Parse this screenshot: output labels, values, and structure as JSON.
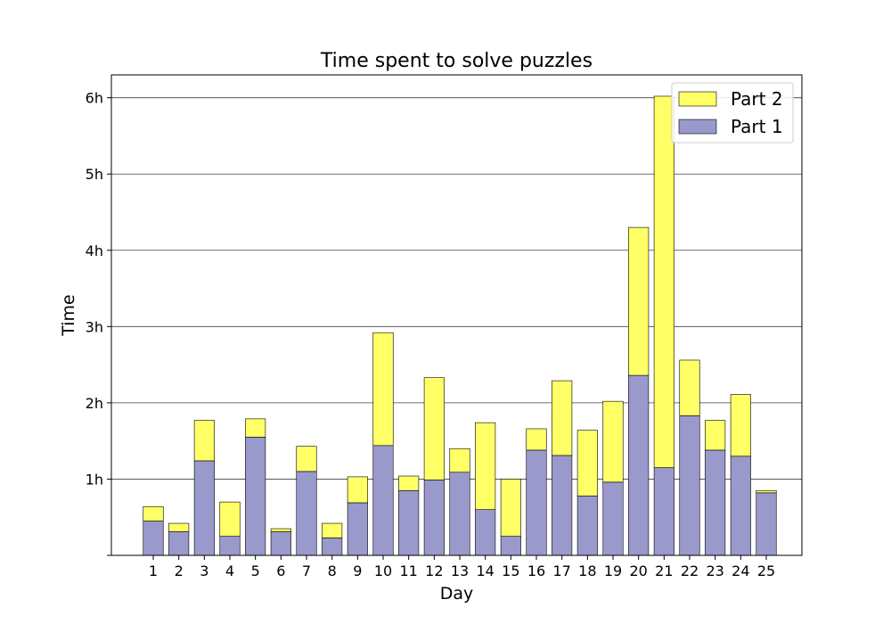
{
  "chart_data": {
    "type": "bar",
    "stacked": true,
    "title": "Time spent to solve puzzles",
    "xlabel": "Day",
    "ylabel": "Time",
    "categories": [
      "1",
      "2",
      "3",
      "4",
      "5",
      "6",
      "7",
      "8",
      "9",
      "10",
      "11",
      "12",
      "13",
      "14",
      "15",
      "16",
      "17",
      "18",
      "19",
      "20",
      "21",
      "22",
      "23",
      "24",
      "25"
    ],
    "series": [
      {
        "name": "Part 1",
        "color": "#9999cc",
        "values": [
          0.45,
          0.31,
          1.24,
          0.25,
          1.55,
          0.31,
          1.1,
          0.23,
          0.69,
          1.44,
          0.85,
          0.99,
          1.09,
          0.6,
          0.25,
          1.38,
          1.31,
          0.78,
          0.96,
          2.36,
          1.15,
          1.83,
          1.38,
          1.3,
          0.82
        ]
      },
      {
        "name": "Part 2",
        "color": "#ffff66",
        "values": [
          0.19,
          0.11,
          0.53,
          0.45,
          0.24,
          0.04,
          0.33,
          0.19,
          0.34,
          1.48,
          0.19,
          1.34,
          0.31,
          1.14,
          0.75,
          0.28,
          0.98,
          0.86,
          1.06,
          1.94,
          4.87,
          0.73,
          0.39,
          0.81,
          0.03
        ]
      }
    ],
    "ylim": [
      0,
      6.3
    ],
    "yticks": [
      {
        "value": 1,
        "label": "1h"
      },
      {
        "value": 2,
        "label": "2h"
      },
      {
        "value": 3,
        "label": "3h"
      },
      {
        "value": 4,
        "label": "4h"
      },
      {
        "value": 5,
        "label": "5h"
      },
      {
        "value": 6,
        "label": "6h"
      }
    ],
    "grid": "y",
    "legend": {
      "position": "top-right",
      "order": [
        "Part 2",
        "Part 1"
      ]
    }
  }
}
